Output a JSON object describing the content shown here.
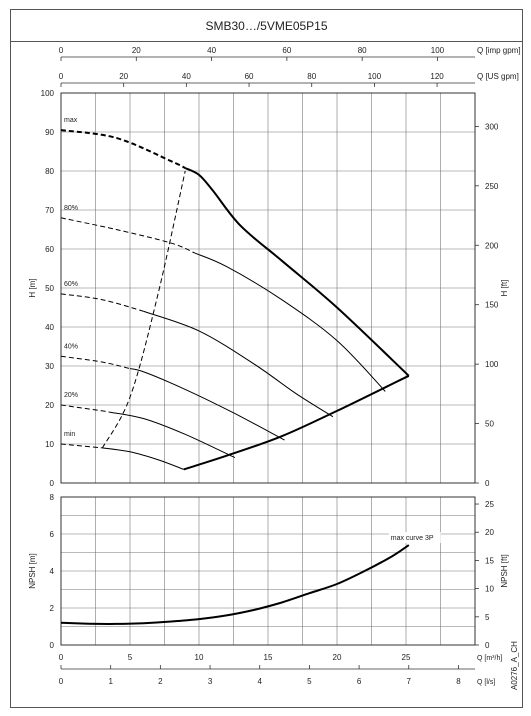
{
  "title": "SMB30…/5VME05P15",
  "doc_code": "A0276_A_CH",
  "chart_data": [
    {
      "type": "line",
      "panel": "head",
      "xlabel_top_1": "Q [imp gpm]",
      "xticks_top_1": [
        "0",
        "20",
        "40",
        "60",
        "80",
        "100"
      ],
      "xlabel_top_2": "Q [US gpm]",
      "xticks_top_2": [
        "0",
        "20",
        "40",
        "60",
        "80",
        "100",
        "120"
      ],
      "ylabel_left": "H [m]",
      "yticks_left": [
        "0",
        "10",
        "20",
        "30",
        "40",
        "50",
        "60",
        "70",
        "80",
        "90",
        "100"
      ],
      "ylabel_right": "H [ft]",
      "yticks_right": [
        "0",
        "50",
        "100",
        "150",
        "200",
        "250",
        "300"
      ],
      "xlim": [
        0,
        30
      ],
      "ylim": [
        0,
        100
      ],
      "grid": true,
      "annotations": [
        "max",
        "80%",
        "60%",
        "40%",
        "20%",
        "min"
      ],
      "series": [
        {
          "name": "max",
          "dashed_x": [
            0,
            9
          ],
          "x": [
            0,
            4,
            8,
            10,
            11,
            13,
            16,
            20,
            25.2
          ],
          "y": [
            90.5,
            88.5,
            82.5,
            79,
            75,
            66,
            57,
            45,
            27.5
          ]
        },
        {
          "name": "80%",
          "dashed_x": [
            0,
            9.7
          ],
          "x": [
            0,
            4,
            8,
            12,
            16,
            20,
            23.5
          ],
          "y": [
            68,
            65,
            61.5,
            55.5,
            47,
            36.5,
            23.5
          ]
        },
        {
          "name": "60%",
          "dashed_x": [
            0,
            6
          ],
          "x": [
            0,
            3,
            6,
            10,
            14,
            17,
            19.7
          ],
          "y": [
            48.5,
            47,
            44,
            39,
            30.5,
            23,
            17
          ]
        },
        {
          "name": "40%",
          "dashed_x": [
            0,
            5
          ],
          "x": [
            0,
            3,
            6,
            9,
            12.5,
            16.2
          ],
          "y": [
            32.5,
            31,
            28.5,
            24,
            18,
            11
          ]
        },
        {
          "name": "20%",
          "dashed_x": [
            0,
            3.5
          ],
          "x": [
            0,
            3,
            6,
            9,
            12.6
          ],
          "y": [
            20,
            18.5,
            16.5,
            12.5,
            6.5
          ]
        },
        {
          "name": "min",
          "dashed_x": [
            0,
            3
          ],
          "x": [
            0,
            3,
            5,
            7,
            8.9
          ],
          "y": [
            10,
            9,
            8,
            6,
            3.5
          ]
        },
        {
          "name": "limit",
          "x": [
            8.9,
            12,
            16,
            20,
            25.2
          ],
          "y": [
            3.5,
            7,
            12,
            18.5,
            27.5
          ]
        },
        {
          "name": "min-flow",
          "dashed_x": [
            3,
            9
          ],
          "x": [
            3,
            5,
            7,
            9
          ],
          "y": [
            9,
            22,
            48,
            80
          ]
        }
      ]
    },
    {
      "type": "line",
      "panel": "npsh",
      "xlabel_bottom_1": "Q [m³/h]",
      "xticks_bottom_1": [
        "0",
        "5",
        "10",
        "15",
        "20",
        "25"
      ],
      "xlabel_bottom_2": "Q [l/s]",
      "xticks_bottom_2": [
        "0",
        "1",
        "2",
        "3",
        "4",
        "5",
        "6",
        "7",
        "8"
      ],
      "ylabel_left": "NPSH [m]",
      "yticks_left": [
        "0",
        "2",
        "4",
        "6",
        "8"
      ],
      "ylabel_right": "NPSH [ft]",
      "yticks_right": [
        "0",
        "5",
        "10",
        "15",
        "20",
        "25"
      ],
      "xlim": [
        0,
        30
      ],
      "ylim": [
        0,
        8
      ],
      "grid": true,
      "annotation": "max curve 3P",
      "series": [
        {
          "name": "max curve 3P",
          "x": [
            0,
            2,
            4,
            6,
            8,
            10,
            12,
            14,
            16,
            18,
            20,
            22,
            24,
            25.2
          ],
          "y": [
            1.2,
            1.15,
            1.14,
            1.18,
            1.27,
            1.4,
            1.6,
            1.9,
            2.3,
            2.8,
            3.3,
            4.0,
            4.8,
            5.4
          ]
        }
      ]
    }
  ]
}
